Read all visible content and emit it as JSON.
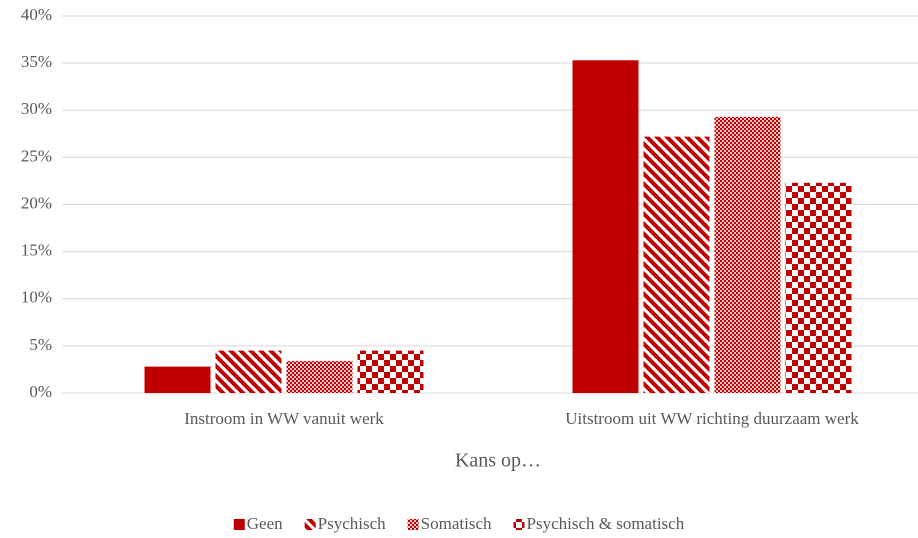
{
  "chart_data": {
    "type": "bar",
    "x_label": "Kans op…",
    "categories": [
      "Instroom in WW vanuit werk",
      "Uitstroom uit WW richting duurzaam werk"
    ],
    "series": [
      {
        "name": "Geen",
        "color": "#c00000",
        "pattern": "solid",
        "values": [
          2.8,
          35.3
        ]
      },
      {
        "name": "Psychisch",
        "color": "#c00000",
        "pattern": "diagonal",
        "values": [
          4.5,
          27.2
        ]
      },
      {
        "name": "Somatisch",
        "color": "#c00000",
        "pattern": "fine-checker",
        "values": [
          3.4,
          29.3
        ]
      },
      {
        "name": "Psychisch & somatisch",
        "color": "#c00000",
        "pattern": "checker",
        "values": [
          4.5,
          22.3
        ]
      }
    ],
    "ylim": [
      0,
      40
    ],
    "yticks": [
      {
        "value": 0,
        "label": "0%"
      },
      {
        "value": 5,
        "label": "5%"
      },
      {
        "value": 10,
        "label": "10%"
      },
      {
        "value": 15,
        "label": "15%"
      },
      {
        "value": 20,
        "label": "20%"
      },
      {
        "value": 25,
        "label": "25%"
      },
      {
        "value": 30,
        "label": "30%"
      },
      {
        "value": 35,
        "label": "35%"
      },
      {
        "value": 40,
        "label": "40%"
      }
    ],
    "grid": true,
    "legend": "bottom"
  }
}
